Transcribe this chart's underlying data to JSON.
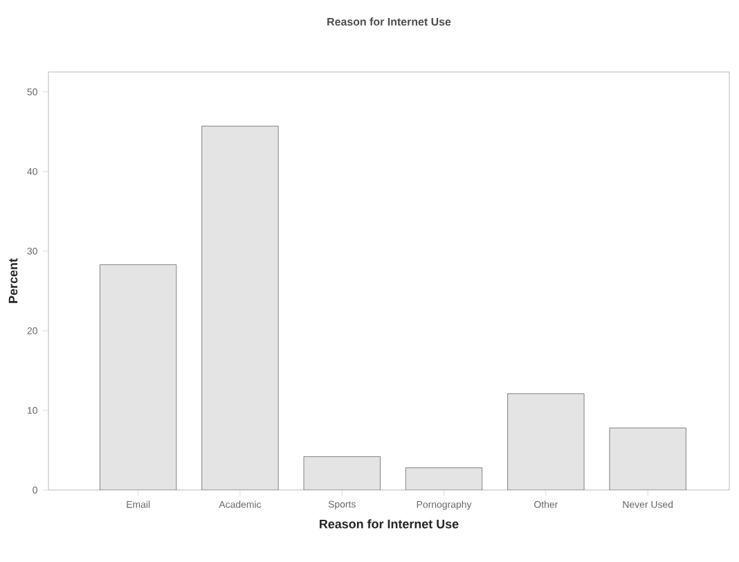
{
  "chart_data": {
    "type": "bar",
    "title": "Reason for Internet Use",
    "xlabel": "Reason for Internet Use",
    "ylabel": "Percent",
    "categories": [
      "Email",
      "Academic",
      "Sports",
      "Pornography",
      "Other",
      "Never Used"
    ],
    "values": [
      28.3,
      45.7,
      4.2,
      2.8,
      12.1,
      7.8
    ],
    "color": "#e4e4e4",
    "ylim": [
      0,
      52.5
    ],
    "yticks": [
      0,
      10,
      20,
      30,
      40,
      50
    ],
    "grid": false
  }
}
